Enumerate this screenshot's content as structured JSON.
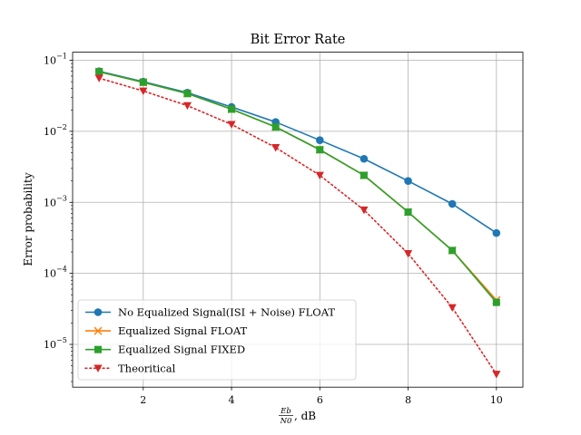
{
  "chart_data": {
    "type": "line",
    "title": "Bit Error Rate",
    "xlabel_fraction": {
      "numerator": "Eb",
      "denominator": "N0"
    },
    "xlabel_suffix": ", dB",
    "ylabel": "Error probability",
    "xlim": [
      0.4,
      10.6
    ],
    "ylim": [
      2.5e-06,
      0.13
    ],
    "yscale": "log",
    "grid": true,
    "x_ticks": [
      2,
      4,
      6,
      8,
      10
    ],
    "y_ticks": [
      {
        "value": 1e-05,
        "mantissa": "10",
        "exp": "−5"
      },
      {
        "value": 0.0001,
        "mantissa": "10",
        "exp": "−4"
      },
      {
        "value": 0.001,
        "mantissa": "10",
        "exp": "−3"
      },
      {
        "value": 0.01,
        "mantissa": "10",
        "exp": "−2"
      },
      {
        "value": 0.1,
        "mantissa": "10",
        "exp": "−1"
      }
    ],
    "legend_position": "lower left",
    "x": [
      1,
      2,
      3,
      4,
      5,
      6,
      7,
      8,
      9,
      10
    ],
    "series": [
      {
        "name": "No Equalized Signal(ISI + Noise) FLOAT",
        "color": "#1f77b4",
        "marker": "circle",
        "line": "solid",
        "values": [
          0.07,
          0.05,
          0.035,
          0.022,
          0.0135,
          0.0075,
          0.0041,
          0.002,
          0.00095,
          0.00037
        ]
      },
      {
        "name": "Equalized Signal FLOAT",
        "color": "#ff7f0e",
        "marker": "x",
        "line": "solid",
        "values": [
          0.069,
          0.049,
          0.034,
          0.0205,
          0.0115,
          0.0055,
          0.0024,
          0.00073,
          0.00021,
          4.2e-05
        ]
      },
      {
        "name": "Equalized Signal FIXED",
        "color": "#2ca02c",
        "marker": "square",
        "line": "solid",
        "values": [
          0.069,
          0.049,
          0.034,
          0.0205,
          0.0115,
          0.0055,
          0.0024,
          0.00073,
          0.00021,
          3.9e-05
        ]
      },
      {
        "name": "Theoritical",
        "color": "#d62728",
        "marker": "triangle-down",
        "line": "dotted",
        "values": [
          0.056,
          0.037,
          0.023,
          0.0125,
          0.0059,
          0.0024,
          0.00078,
          0.00019,
          3.3e-05,
          3.8e-06
        ]
      }
    ]
  }
}
